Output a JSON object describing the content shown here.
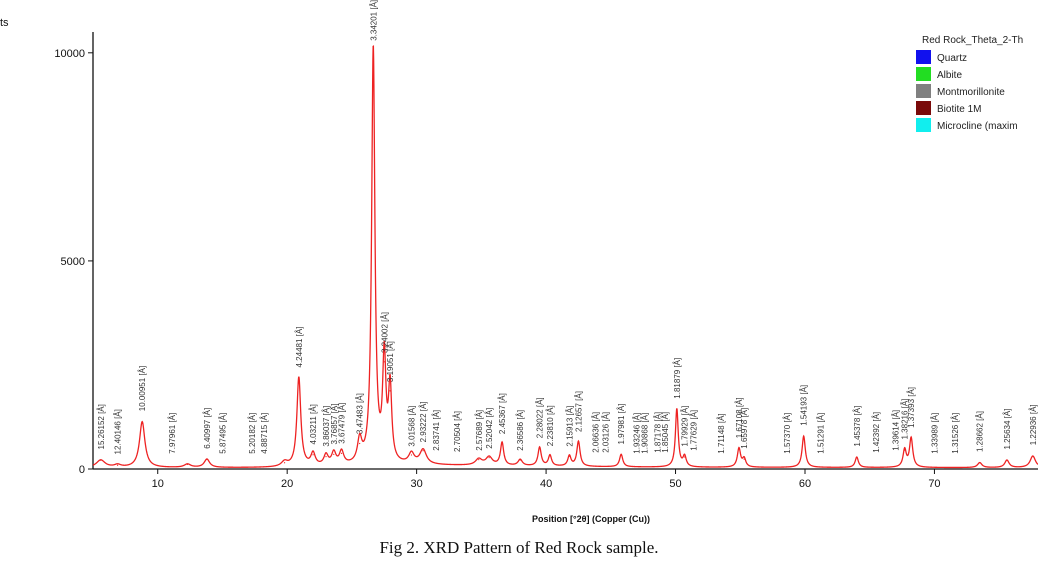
{
  "caption": "Fig 2. XRD Pattern of Red Rock sample.",
  "chart_data": {
    "type": "line",
    "ylabel": "ts",
    "xlabel": "Position [°2θ] (Copper (Cu))",
    "xlim": [
      5,
      78
    ],
    "ylim": [
      0,
      10500
    ],
    "x_ticks": [
      10,
      20,
      30,
      40,
      50,
      60,
      70
    ],
    "y_ticks": [
      0,
      5000,
      10000
    ],
    "grid": false,
    "legend_placement": "top-right",
    "legend": {
      "title": "Red Rock_Theta_2-Th",
      "entries": [
        {
          "label": "Quartz",
          "color": "#1111ee"
        },
        {
          "label": "Albite",
          "color": "#22dd22"
        },
        {
          "label": "Montmorillonite",
          "color": "#808080"
        },
        {
          "label": "Biotite 1M",
          "color": "#7a0a0a"
        },
        {
          "label": "Microcline (maxim",
          "color": "#11eeee"
        }
      ]
    },
    "series": [
      {
        "color": "#ee2222",
        "peaks": [
          {
            "x": 5.6,
            "y": 180,
            "w": 0.4
          },
          {
            "x": 6.9,
            "y": 60,
            "w": 0.3
          },
          {
            "x": 8.8,
            "y": 1100,
            "w": 0.25
          },
          {
            "x": 12.3,
            "y": 80,
            "w": 0.3
          },
          {
            "x": 13.8,
            "y": 200,
            "w": 0.25
          },
          {
            "x": 19.8,
            "y": 120,
            "w": 0.3
          },
          {
            "x": 20.9,
            "y": 2150,
            "w": 0.18
          },
          {
            "x": 22.0,
            "y": 300,
            "w": 0.2
          },
          {
            "x": 23.0,
            "y": 250,
            "w": 0.2
          },
          {
            "x": 23.6,
            "y": 300,
            "w": 0.2
          },
          {
            "x": 24.2,
            "y": 320,
            "w": 0.2
          },
          {
            "x": 25.6,
            "y": 550,
            "w": 0.2
          },
          {
            "x": 26.65,
            "y": 10000,
            "w": 0.15
          },
          {
            "x": 27.5,
            "y": 2500,
            "w": 0.15
          },
          {
            "x": 27.95,
            "y": 1800,
            "w": 0.15
          },
          {
            "x": 29.6,
            "y": 250,
            "w": 0.25
          },
          {
            "x": 30.5,
            "y": 350,
            "w": 0.3
          },
          {
            "x": 34.8,
            "y": 150,
            "w": 0.3
          },
          {
            "x": 35.6,
            "y": 200,
            "w": 0.3
          },
          {
            "x": 36.6,
            "y": 550,
            "w": 0.15
          },
          {
            "x": 38.0,
            "y": 150,
            "w": 0.2
          },
          {
            "x": 39.5,
            "y": 450,
            "w": 0.15
          },
          {
            "x": 40.3,
            "y": 260,
            "w": 0.15
          },
          {
            "x": 41.8,
            "y": 250,
            "w": 0.15
          },
          {
            "x": 42.5,
            "y": 600,
            "w": 0.15
          },
          {
            "x": 45.8,
            "y": 300,
            "w": 0.15
          },
          {
            "x": 50.1,
            "y": 1400,
            "w": 0.13
          },
          {
            "x": 50.7,
            "y": 250,
            "w": 0.15
          },
          {
            "x": 54.9,
            "y": 450,
            "w": 0.15
          },
          {
            "x": 55.3,
            "y": 200,
            "w": 0.15
          },
          {
            "x": 59.9,
            "y": 750,
            "w": 0.15
          },
          {
            "x": 64.0,
            "y": 250,
            "w": 0.15
          },
          {
            "x": 67.7,
            "y": 420,
            "w": 0.15
          },
          {
            "x": 68.2,
            "y": 700,
            "w": 0.15
          },
          {
            "x": 73.5,
            "y": 120,
            "w": 0.2
          },
          {
            "x": 75.6,
            "y": 180,
            "w": 0.2
          },
          {
            "x": 77.6,
            "y": 280,
            "w": 0.25
          }
        ],
        "baseline": [
          {
            "x": 5,
            "y": 30
          },
          {
            "x": 20,
            "y": 30
          },
          {
            "x": 30,
            "y": 90
          },
          {
            "x": 40,
            "y": 60
          },
          {
            "x": 50,
            "y": 40
          },
          {
            "x": 78,
            "y": 30
          }
        ]
      }
    ],
    "peak_labels": [
      {
        "x": 5.6,
        "y": 180,
        "text": "15.26152 [Å]"
      },
      {
        "x": 6.9,
        "y": 60,
        "text": "12.40146 [Å]"
      },
      {
        "x": 8.8,
        "y": 1100,
        "text": "10.00951 [Å]"
      },
      {
        "x": 11.1,
        "y": 80,
        "text": "7.97961 [Å]"
      },
      {
        "x": 13.8,
        "y": 200,
        "text": "6.40997 [Å]"
      },
      {
        "x": 15.0,
        "y": 80,
        "text": "5.87495 [Å]"
      },
      {
        "x": 17.3,
        "y": 80,
        "text": "5.20182 [Å]"
      },
      {
        "x": 18.2,
        "y": 80,
        "text": "4.88715 [Å]"
      },
      {
        "x": 20.9,
        "y": 2150,
        "text": "4.24481 [Å]"
      },
      {
        "x": 22.0,
        "y": 300,
        "text": "4.03211 [Å]"
      },
      {
        "x": 23.0,
        "y": 250,
        "text": "3.86037 [Å]"
      },
      {
        "x": 23.6,
        "y": 300,
        "text": "3.76857 [Å]"
      },
      {
        "x": 24.2,
        "y": 320,
        "text": "3.67479 [Å]"
      },
      {
        "x": 25.6,
        "y": 550,
        "text": "3.47483 [Å]"
      },
      {
        "x": 26.65,
        "y": 10000,
        "text": "3.34201 [Å]"
      },
      {
        "x": 27.5,
        "y": 2500,
        "text": "3.24002 [Å]"
      },
      {
        "x": 27.95,
        "y": 1800,
        "text": "3.19051 [Å]"
      },
      {
        "x": 29.6,
        "y": 250,
        "text": "3.01568 [Å]"
      },
      {
        "x": 30.5,
        "y": 350,
        "text": "2.93222 [Å]"
      },
      {
        "x": 31.5,
        "y": 150,
        "text": "2.83741 [Å]"
      },
      {
        "x": 33.1,
        "y": 120,
        "text": "2.70504 [Å]"
      },
      {
        "x": 34.8,
        "y": 150,
        "text": "2.57689 [Å]"
      },
      {
        "x": 35.6,
        "y": 200,
        "text": "2.52042 [Å]"
      },
      {
        "x": 36.6,
        "y": 550,
        "text": "2.45367 [Å]"
      },
      {
        "x": 38.0,
        "y": 150,
        "text": "2.36586 [Å]"
      },
      {
        "x": 39.5,
        "y": 450,
        "text": "2.28022 [Å]"
      },
      {
        "x": 40.3,
        "y": 260,
        "text": "2.23810 [Å]"
      },
      {
        "x": 41.8,
        "y": 250,
        "text": "2.15913 [Å]"
      },
      {
        "x": 42.5,
        "y": 600,
        "text": "2.12657 [Å]"
      },
      {
        "x": 43.8,
        "y": 100,
        "text": "2.06636 [Å]"
      },
      {
        "x": 44.6,
        "y": 100,
        "text": "2.03126 [Å]"
      },
      {
        "x": 45.8,
        "y": 300,
        "text": "1.97981 [Å]"
      },
      {
        "x": 47.0,
        "y": 80,
        "text": "1.93246 [Å]"
      },
      {
        "x": 47.6,
        "y": 80,
        "text": "1.90868 [Å]"
      },
      {
        "x": 48.6,
        "y": 100,
        "text": "1.87178 [Å]"
      },
      {
        "x": 49.2,
        "y": 100,
        "text": "1.85045 [Å]"
      },
      {
        "x": 50.1,
        "y": 1400,
        "text": "1.81879 [Å]"
      },
      {
        "x": 50.7,
        "y": 250,
        "text": "1.79929 [Å]"
      },
      {
        "x": 51.4,
        "y": 150,
        "text": "1.77629 [Å]"
      },
      {
        "x": 53.5,
        "y": 80,
        "text": "1.71148 [Å]"
      },
      {
        "x": 54.9,
        "y": 450,
        "text": "1.67108 [Å]"
      },
      {
        "x": 55.3,
        "y": 200,
        "text": "1.65978 [Å]"
      },
      {
        "x": 58.6,
        "y": 80,
        "text": "1.57370 [Å]"
      },
      {
        "x": 59.9,
        "y": 750,
        "text": "1.54193 [Å]"
      },
      {
        "x": 61.2,
        "y": 80,
        "text": "1.51291 [Å]"
      },
      {
        "x": 64.0,
        "y": 250,
        "text": "1.45378 [Å]"
      },
      {
        "x": 65.5,
        "y": 100,
        "text": "1.42392 [Å]"
      },
      {
        "x": 67.0,
        "y": 150,
        "text": "1.39614 [Å]"
      },
      {
        "x": 67.7,
        "y": 420,
        "text": "1.38216 [Å]"
      },
      {
        "x": 68.2,
        "y": 700,
        "text": "1.37393 [Å]"
      },
      {
        "x": 70.0,
        "y": 80,
        "text": "1.33989 [Å]"
      },
      {
        "x": 71.6,
        "y": 80,
        "text": "1.31526 [Å]"
      },
      {
        "x": 73.5,
        "y": 120,
        "text": "1.28662 [Å]"
      },
      {
        "x": 75.6,
        "y": 180,
        "text": "1.25634 [Å]"
      },
      {
        "x": 77.6,
        "y": 280,
        "text": "1.22936 [Å]"
      }
    ]
  }
}
